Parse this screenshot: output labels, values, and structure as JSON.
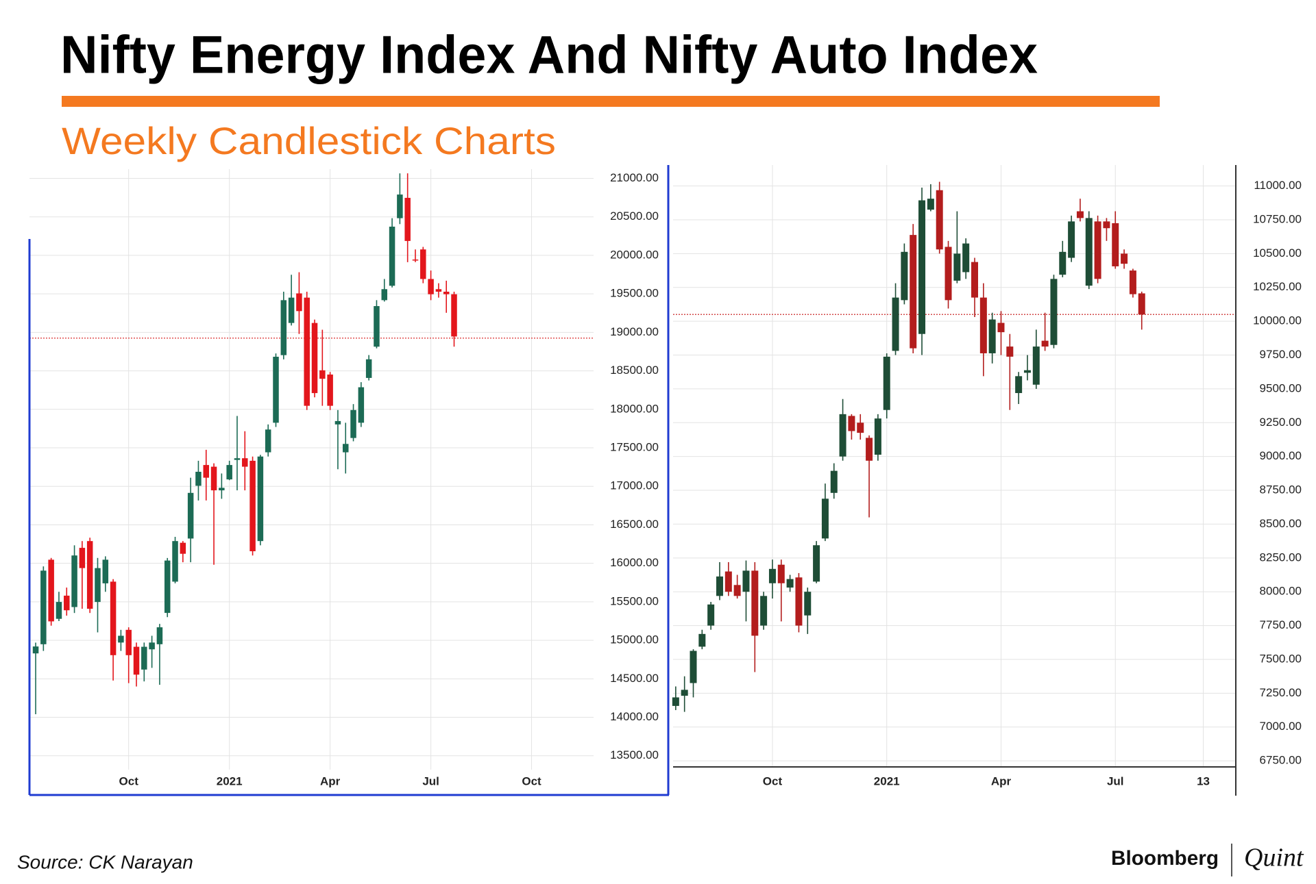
{
  "title": "Nifty Energy Index And Nifty Auto Index",
  "subtitle": "Weekly Candlestick Charts",
  "source": "Source: CK Narayan",
  "brand": {
    "name": "Bloomberg",
    "partner": "Quint"
  },
  "chart_data": [
    {
      "type": "candlestick",
      "x": [
        0,
        1,
        2,
        3,
        4,
        5,
        6,
        7,
        8,
        9,
        10,
        11,
        12,
        13,
        14,
        15,
        16,
        17,
        18,
        19,
        20,
        21,
        22,
        23,
        24,
        25,
        26,
        27,
        28,
        29,
        30,
        31,
        32,
        33,
        34,
        35,
        36,
        37,
        38,
        39,
        40,
        41,
        42,
        43,
        44,
        45,
        46,
        47,
        48,
        49,
        50,
        51,
        52,
        53,
        54
      ],
      "open": [
        14830,
        14949,
        16047,
        15279,
        15580,
        15432,
        16201,
        16289,
        15498,
        15740,
        15762,
        14971,
        15136,
        14916,
        14620,
        14883,
        14949,
        15356,
        15762,
        16267,
        16322,
        17007,
        17277,
        17255,
        16948,
        17090,
        17343,
        17365,
        17332,
        16289,
        17442,
        17826,
        18704,
        19122,
        19506,
        19451,
        19122,
        18507,
        18452,
        17804,
        17442,
        17628,
        17826,
        18408,
        18814,
        19418,
        19605,
        20483,
        20747,
        19946,
        20077,
        19693,
        19561,
        19528,
        19495
      ],
      "high": [
        14970,
        15960,
        16070,
        15630,
        15685,
        16234,
        16289,
        16333,
        16070,
        16091,
        15795,
        15136,
        15169,
        14971,
        14971,
        15059,
        15213,
        16069,
        16344,
        16289,
        17112,
        17332,
        17475,
        17299,
        17167,
        17332,
        17914,
        17716,
        17387,
        17409,
        17804,
        18726,
        19528,
        19748,
        19781,
        19528,
        19166,
        19034,
        18485,
        17991,
        17826,
        18068,
        18353,
        18705,
        19418,
        19693,
        20483,
        21065,
        21065,
        20077,
        20110,
        19803,
        19638,
        19671,
        19528
      ],
      "low": [
        14040,
        14862,
        15190,
        15250,
        15320,
        15355,
        15410,
        15355,
        15103,
        15630,
        14477,
        14862,
        14444,
        14400,
        14466,
        14642,
        14422,
        15301,
        15740,
        16014,
        16014,
        16816,
        16816,
        15981,
        16838,
        17080,
        16948,
        16948,
        16102,
        16234,
        17387,
        17771,
        18649,
        19089,
        18979,
        17991,
        18156,
        18046,
        17991,
        17222,
        17167,
        17585,
        17771,
        18375,
        18792,
        19400,
        19583,
        20406,
        19912,
        19912,
        19638,
        19418,
        19451,
        19254,
        18814
      ],
      "close": [
        14920,
        15905,
        15246,
        15498,
        15390,
        16102,
        15938,
        15410,
        15938,
        16047,
        14807,
        15059,
        14807,
        14554,
        14916,
        14971,
        15169,
        16036,
        16289,
        16124,
        16915,
        17189,
        17112,
        16948,
        16981,
        17277,
        17365,
        17255,
        16157,
        17387,
        17738,
        18683,
        19418,
        19451,
        19276,
        18046,
        18211,
        18397,
        18046,
        17848,
        17551,
        17991,
        18287,
        18650,
        19341,
        19561,
        20373,
        20790,
        20187,
        19935,
        19693,
        19495,
        19528,
        19495,
        18946
      ],
      "xlim": [
        -0.8,
        72
      ],
      "ylim": [
        13320,
        21120
      ],
      "xticks": [
        {
          "value": 12,
          "label": "Oct"
        },
        {
          "value": 25,
          "label": "2021"
        },
        {
          "value": 38,
          "label": "Apr"
        },
        {
          "value": 51,
          "label": "Jul"
        },
        {
          "value": 64,
          "label": "Oct"
        }
      ],
      "yticks": [
        {
          "value": 13500,
          "label": "13500.00"
        },
        {
          "value": 14000,
          "label": "14000.00"
        },
        {
          "value": 14500,
          "label": "14500.00"
        },
        {
          "value": 15000,
          "label": "15000.00"
        },
        {
          "value": 15500,
          "label": "15500.00"
        },
        {
          "value": 16000,
          "label": "16000.00"
        },
        {
          "value": 16500,
          "label": "16500.00"
        },
        {
          "value": 17000,
          "label": "17000.00"
        },
        {
          "value": 17500,
          "label": "17500.00"
        },
        {
          "value": 18000,
          "label": "18000.00"
        },
        {
          "value": 18500,
          "label": "18500.00"
        },
        {
          "value": 19000,
          "label": "19000.00"
        },
        {
          "value": 19500,
          "label": "19500.00"
        },
        {
          "value": 20000,
          "label": "20000.00"
        },
        {
          "value": 20500,
          "label": "20500.00"
        },
        {
          "value": 21000,
          "label": "21000.00"
        }
      ],
      "up_color": "#1c6b55",
      "down_color": "#e3161c",
      "price_line": 18925,
      "price_line_color": "#e05050",
      "grid": true
    },
    {
      "type": "candlestick",
      "x": [
        0,
        1,
        2,
        3,
        4,
        5,
        6,
        7,
        8,
        9,
        10,
        11,
        12,
        13,
        14,
        15,
        16,
        17,
        18,
        19,
        20,
        21,
        22,
        23,
        24,
        25,
        26,
        27,
        28,
        29,
        30,
        31,
        32,
        33,
        34,
        35,
        36,
        37,
        38,
        39,
        40,
        41,
        42,
        43,
        44,
        45,
        46,
        47,
        48,
        49,
        50,
        51,
        52,
        53
      ],
      "open": [
        7156,
        7231,
        7325,
        7594,
        7750,
        7969,
        8150,
        8050,
        8000,
        8156,
        7750,
        8063,
        8200,
        8031,
        8106,
        7825,
        8075,
        8394,
        8731,
        9000,
        9300,
        9250,
        9138,
        9013,
        9344,
        9781,
        10156,
        10638,
        9906,
        10825,
        10969,
        10550,
        10300,
        10363,
        10438,
        10175,
        9763,
        9988,
        9813,
        9469,
        9619,
        9531,
        9856,
        9825,
        10344,
        10469,
        10813,
        10263,
        10738,
        10738,
        10725,
        10500,
        10375,
        10206
      ],
      "high": [
        7300,
        7375,
        7575,
        7719,
        7925,
        8219,
        8219,
        8125,
        8231,
        8219,
        8000,
        8238,
        8238,
        8125,
        8138,
        8031,
        8375,
        8800,
        8950,
        9425,
        9313,
        9313,
        9156,
        9313,
        9763,
        10281,
        10575,
        10719,
        10988,
        11013,
        11031,
        10594,
        10813,
        10613,
        10469,
        10281,
        10063,
        10075,
        9906,
        9625,
        9750,
        9938,
        10063,
        10344,
        10594,
        10781,
        10906,
        10813,
        10781,
        10763,
        10813,
        10531,
        10388,
        10219
      ],
      "low": [
        7125,
        7112,
        7219,
        7575,
        7719,
        7938,
        7969,
        7950,
        7781,
        7406,
        7719,
        7950,
        7781,
        8000,
        7700,
        7688,
        8063,
        8375,
        8688,
        8969,
        9125,
        9125,
        8550,
        8969,
        9281,
        9750,
        10125,
        9763,
        9750,
        10813,
        10500,
        10094,
        10281,
        10313,
        10031,
        9594,
        9688,
        9750,
        9344,
        9388,
        9563,
        9500,
        9781,
        9800,
        10325,
        10438,
        10738,
        10238,
        10281,
        10594,
        10388,
        10388,
        10175,
        9938
      ],
      "close": [
        7219,
        7275,
        7563,
        7688,
        7906,
        8113,
        8000,
        7969,
        8156,
        7675,
        7969,
        8169,
        8063,
        8094,
        7750,
        8000,
        8344,
        8688,
        8894,
        9313,
        9188,
        9175,
        8969,
        9281,
        9738,
        10175,
        10513,
        9800,
        10894,
        10906,
        10531,
        10156,
        10500,
        10575,
        10175,
        9763,
        10013,
        9919,
        9738,
        9594,
        9638,
        9813,
        9813,
        10313,
        10513,
        10738,
        10763,
        10763,
        10313,
        10688,
        10406,
        10425,
        10200,
        10050
      ],
      "xlim": [
        -0.3,
        63.7
      ],
      "ylim": [
        6705,
        11155
      ],
      "xticks": [
        {
          "value": 11,
          "label": "Oct"
        },
        {
          "value": 24,
          "label": "2021"
        },
        {
          "value": 37,
          "label": "Apr"
        },
        {
          "value": 50,
          "label": "Jul"
        },
        {
          "value": 60,
          "label": "13"
        }
      ],
      "yticks": [
        {
          "value": 6750,
          "label": "6750.00"
        },
        {
          "value": 7000,
          "label": "7000.00"
        },
        {
          "value": 7250,
          "label": "7250.00"
        },
        {
          "value": 7500,
          "label": "7500.00"
        },
        {
          "value": 7750,
          "label": "7750.00"
        },
        {
          "value": 8000,
          "label": "8000.00"
        },
        {
          "value": 8250,
          "label": "8250.00"
        },
        {
          "value": 8500,
          "label": "8500.00"
        },
        {
          "value": 8750,
          "label": "8750.00"
        },
        {
          "value": 9000,
          "label": "9000.00"
        },
        {
          "value": 9250,
          "label": "9250.00"
        },
        {
          "value": 9500,
          "label": "9500.00"
        },
        {
          "value": 9750,
          "label": "9750.00"
        },
        {
          "value": 10000,
          "label": "10000.00"
        },
        {
          "value": 10250,
          "label": "10250.00"
        },
        {
          "value": 10500,
          "label": "10500.00"
        },
        {
          "value": 10750,
          "label": "10750.00"
        },
        {
          "value": 11000,
          "label": "11000.00"
        }
      ],
      "up_color": "#1e4d36",
      "down_color": "#b31d1d",
      "price_line": 10050,
      "price_line_color": "#d24a4a",
      "grid": true
    }
  ]
}
